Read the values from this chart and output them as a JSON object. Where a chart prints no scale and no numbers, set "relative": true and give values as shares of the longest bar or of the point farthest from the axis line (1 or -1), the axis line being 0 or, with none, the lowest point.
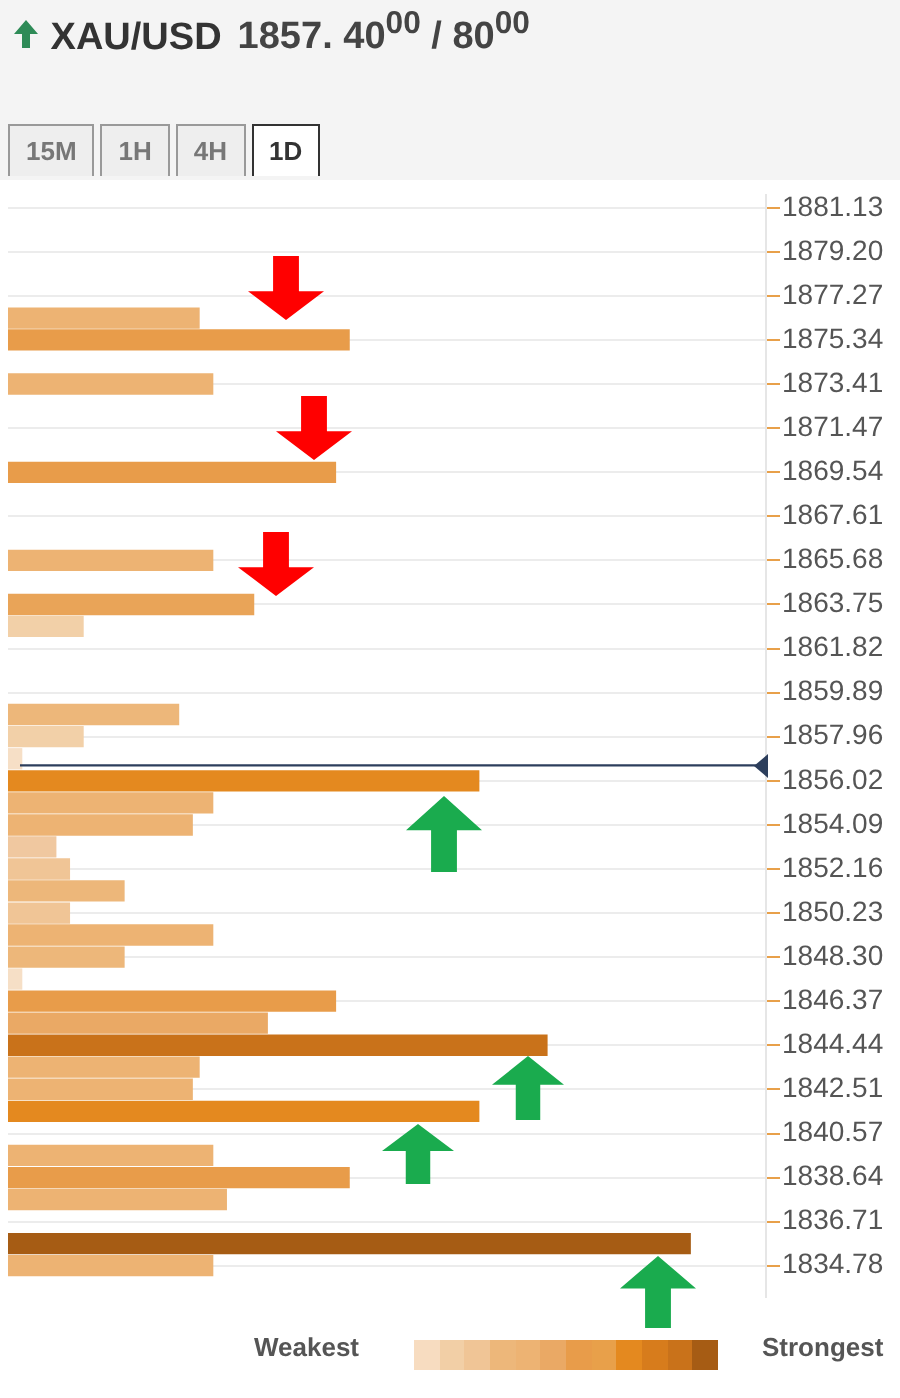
{
  "chart_data": {
    "type": "bar",
    "orientation": "horizontal",
    "relative": true,
    "title": "XAU/USD",
    "subtitle": "1857. 40$^{00}$ / 80$^{00}$",
    "x": [
      1876.3,
      1875.34,
      1873.41,
      1869.54,
      1865.68,
      1863.75,
      1862.79,
      1858.93,
      1857.96,
      1856.99,
      1856.02,
      1855.06,
      1854.09,
      1853.13,
      1852.16,
      1851.2,
      1850.23,
      1849.27,
      1848.3,
      1847.34,
      1846.37,
      1845.41,
      1844.44,
      1843.48,
      1842.51,
      1841.54,
      1839.61,
      1838.64,
      1837.68,
      1835.75,
      1834.78
    ],
    "values": [
      0.28,
      0.5,
      0.3,
      0.48,
      0.3,
      0.36,
      0.11,
      0.25,
      0.11,
      0.02,
      0.69,
      0.3,
      0.27,
      0.07,
      0.09,
      0.17,
      0.09,
      0.3,
      0.17,
      0.02,
      0.48,
      0.38,
      0.79,
      0.28,
      0.27,
      0.69,
      0.3,
      0.5,
      0.32,
      1,
      0.3
    ],
    "colors": [
      "#edb373",
      "#e89c4a",
      "#edb373",
      "#e89c4a",
      "#edb373",
      "#e9a458",
      "#f2d0a8",
      "#edb77a",
      "#f2d0a8",
      "#f6dfc6",
      "#e4891f",
      "#edb373",
      "#edb373",
      "#f0c8a0",
      "#f0c596",
      "#edb77a",
      "#f0c596",
      "#edb373",
      "#edb77a",
      "#f6dfc6",
      "#e89c4a",
      "#eaa965",
      "#c9721a",
      "#edb373",
      "#edb373",
      "#e4891f",
      "#edb373",
      "#e89c4a",
      "#edb373",
      "#a65c14",
      "#edb373"
    ],
    "ylim": [
      1833.4,
      1881.7
    ],
    "yticks": [
      1881.13,
      {
        "value": 1879.2,
        "label": "1879.20"
      },
      1877.27,
      1875.34,
      1873.41,
      1871.47,
      1869.54,
      1867.61,
      1865.68,
      1863.75,
      1861.82,
      1859.89,
      1857.96,
      1856.02,
      1854.09,
      1852.16,
      1850.23,
      {
        "value": 1848.3,
        "label": "1848.30"
      },
      1846.37,
      1844.44,
      1842.51,
      1840.57,
      1838.64,
      1836.71,
      1834.78
    ],
    "tick_labels": "y",
    "grid": "y",
    "legend": false,
    "ref_lines": [
      {
        "axis": "y",
        "value": 1856.7,
        "color": "#2c3e5c"
      }
    ],
    "annotations": [
      "15M",
      "1H",
      "4H",
      "1D",
      "Weakest",
      "Strongest"
    ]
  }
}
